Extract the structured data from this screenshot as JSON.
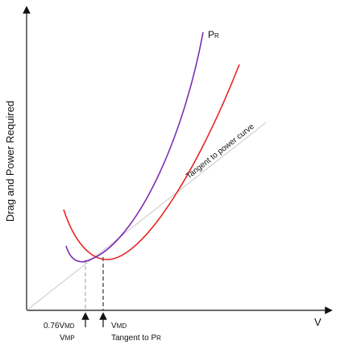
{
  "y_axis_label": "Drag and Power Required",
  "x_axis_label": "V",
  "curve_label": {
    "base": "P",
    "sub": "R"
  },
  "tangent_label": "Tangent to power curve",
  "marker_left": {
    "line1": {
      "prefix": "0.76V",
      "sub": "MD"
    },
    "line2": {
      "base": "V",
      "sub": "MP"
    }
  },
  "marker_right": {
    "line1": {
      "base": "V",
      "sub": "MD"
    },
    "line2": {
      "prefix": "Tangent to P",
      "sub": "R"
    }
  }
}
